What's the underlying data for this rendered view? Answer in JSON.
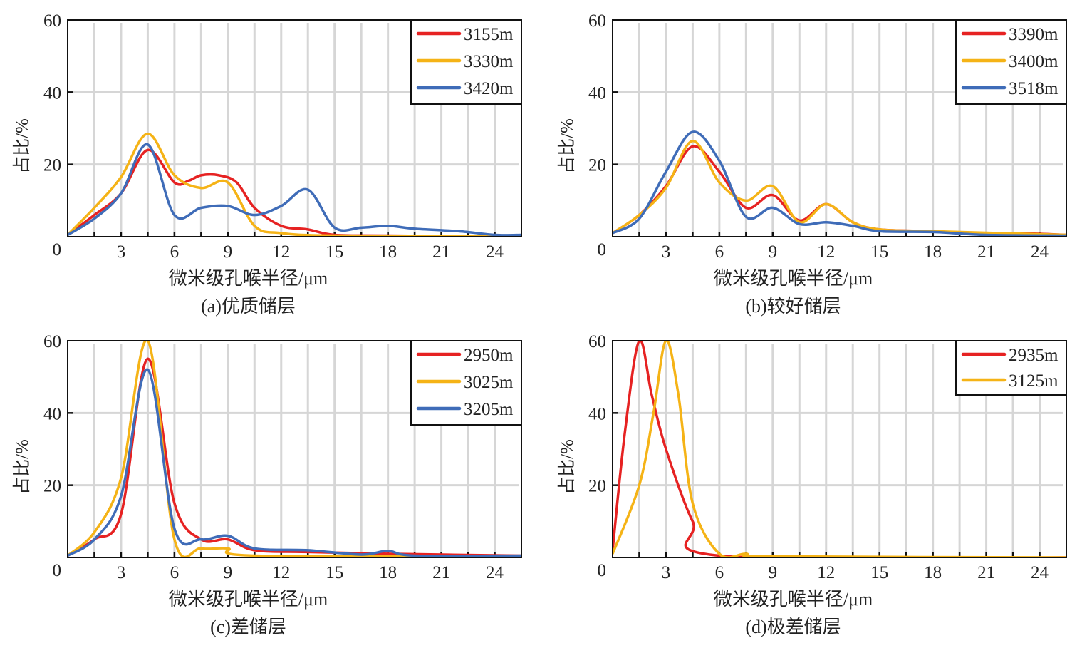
{
  "colors": {
    "red": "#e62222",
    "yellow": "#f5b316",
    "blue": "#3f6cb8",
    "grid": "#d6d6d6"
  },
  "chart_data": [
    {
      "type": "line",
      "title": "(a)优质储层",
      "xlabel": "微米级孔喉半径/μm",
      "ylabel": "占比/%",
      "xlim": [
        0,
        25.5
      ],
      "ylim": [
        0,
        60
      ],
      "xticks": [
        3,
        6,
        9,
        12,
        15,
        18,
        21,
        24
      ],
      "yticks": [
        0,
        20,
        40,
        60
      ],
      "grid": true,
      "legend": "top-right",
      "series": [
        {
          "name": "3155m",
          "color": "red",
          "x": [
            0,
            1.5,
            3,
            4.5,
            6,
            6.8,
            7.5,
            8.5,
            9.5,
            10.5,
            12,
            13.5,
            15,
            18,
            25.5
          ],
          "y": [
            0.5,
            6,
            12,
            24,
            15,
            15.5,
            17,
            17,
            15,
            8,
            3,
            2,
            0.5,
            0.3,
            0
          ]
        },
        {
          "name": "3330m",
          "color": "yellow",
          "x": [
            0,
            1.5,
            3,
            4.5,
            6,
            7.5,
            9,
            10.5,
            12,
            15,
            25.5
          ],
          "y": [
            0.5,
            8,
            16.5,
            28.5,
            17,
            13.5,
            15,
            3,
            1,
            0.3,
            0
          ]
        },
        {
          "name": "3420m",
          "color": "blue",
          "x": [
            0,
            1.5,
            3,
            4.5,
            6,
            7.5,
            9,
            10.5,
            12,
            13.5,
            15,
            16.5,
            18,
            19.5,
            22,
            24,
            25.5
          ],
          "y": [
            0.5,
            5,
            12,
            25.5,
            6,
            8,
            8.5,
            6,
            8.5,
            13,
            2.5,
            2.5,
            3,
            2.2,
            1.5,
            0.5,
            0.5
          ]
        }
      ]
    },
    {
      "type": "line",
      "title": "(b)较好储层",
      "xlabel": "微米级孔喉半径/μm",
      "ylabel": "占比/%",
      "xlim": [
        0,
        25.5
      ],
      "ylim": [
        0,
        60
      ],
      "xticks": [
        3,
        6,
        9,
        12,
        15,
        18,
        21,
        24
      ],
      "yticks": [
        0,
        20,
        40,
        60
      ],
      "grid": true,
      "legend": "top-right",
      "series": [
        {
          "name": "3390m",
          "color": "red",
          "x": [
            0,
            1.5,
            3,
            4.5,
            6,
            7.5,
            9,
            10.5,
            12,
            13.5,
            15,
            18,
            21,
            22.5,
            25.5
          ],
          "y": [
            1,
            6,
            14,
            25,
            18,
            8,
            11.5,
            4.5,
            9,
            4,
            2,
            1.5,
            0.8,
            1,
            0.5
          ]
        },
        {
          "name": "3400m",
          "color": "yellow",
          "x": [
            0,
            1.5,
            3,
            4.5,
            6,
            7.5,
            9,
            10.5,
            12,
            13.5,
            15,
            18,
            25.5
          ],
          "y": [
            1,
            6,
            13.5,
            26.5,
            15,
            10,
            14,
            4,
            9,
            4,
            2,
            1.5,
            0.5
          ]
        },
        {
          "name": "3518m",
          "color": "blue",
          "x": [
            0,
            1.5,
            3,
            4.5,
            6,
            7.5,
            9,
            10.5,
            12,
            13.5,
            15,
            18,
            21,
            25.5
          ],
          "y": [
            1,
            5,
            18,
            29,
            21,
            5.5,
            8,
            3.5,
            4,
            3,
            1.5,
            1.3,
            0.5,
            0.3
          ]
        }
      ]
    },
    {
      "type": "line",
      "title": "(c)差储层",
      "xlabel": "微米级孔喉半径/μm",
      "ylabel": "占比/%",
      "xlim": [
        0,
        25.5
      ],
      "ylim": [
        0,
        60
      ],
      "xticks": [
        3,
        6,
        9,
        12,
        15,
        18,
        21,
        24
      ],
      "yticks": [
        0,
        20,
        40,
        60
      ],
      "grid": true,
      "legend": "top-right",
      "series": [
        {
          "name": "2950m",
          "color": "red",
          "x": [
            0,
            1.5,
            3,
            4.5,
            6,
            7.5,
            9,
            10.5,
            13.5,
            18,
            25.5
          ],
          "y": [
            0.5,
            5,
            12,
            55,
            15,
            5,
            5,
            2,
            1.5,
            1,
            0.5
          ]
        },
        {
          "name": "3025m",
          "color": "yellow",
          "x": [
            0,
            1.5,
            3,
            4.5,
            6,
            7.5,
            9,
            10.5,
            25.5
          ],
          "y": [
            0.5,
            7,
            22,
            60,
            5,
            2.5,
            2.5,
            0.5,
            0.3
          ]
        },
        {
          "name": "3205m",
          "color": "blue",
          "x": [
            0,
            1.5,
            3,
            4.5,
            6,
            7.5,
            9,
            10.5,
            13.5,
            16.5,
            18,
            19.5,
            25.5
          ],
          "y": [
            0.5,
            5,
            17,
            52,
            8,
            5,
            6,
            2.5,
            2,
            0.8,
            1.8,
            0.5,
            0.5
          ]
        }
      ]
    },
    {
      "type": "line",
      "title": "(d)极差储层",
      "xlabel": "微米级孔喉半径/μm",
      "ylabel": "占比/%",
      "xlim": [
        0,
        25.5
      ],
      "ylim": [
        0,
        60
      ],
      "xticks": [
        3,
        6,
        9,
        12,
        15,
        18,
        21,
        24
      ],
      "yticks": [
        0,
        20,
        40,
        60
      ],
      "grid": true,
      "legend": "top-right",
      "series": [
        {
          "name": "2935m",
          "color": "red",
          "x": [
            0,
            0.7,
            1.5,
            2.2,
            3,
            4.5,
            6,
            25.5
          ],
          "y": [
            2,
            35,
            60,
            45,
            30,
            10,
            0.5,
            0
          ]
        },
        {
          "name": "3125m",
          "color": "yellow",
          "x": [
            0,
            1.5,
            2.3,
            3,
            3.7,
            4.5,
            6,
            7.5,
            9,
            25.5
          ],
          "y": [
            1,
            20,
            40,
            60,
            45,
            15,
            1,
            1,
            0.3,
            0
          ]
        }
      ]
    }
  ]
}
